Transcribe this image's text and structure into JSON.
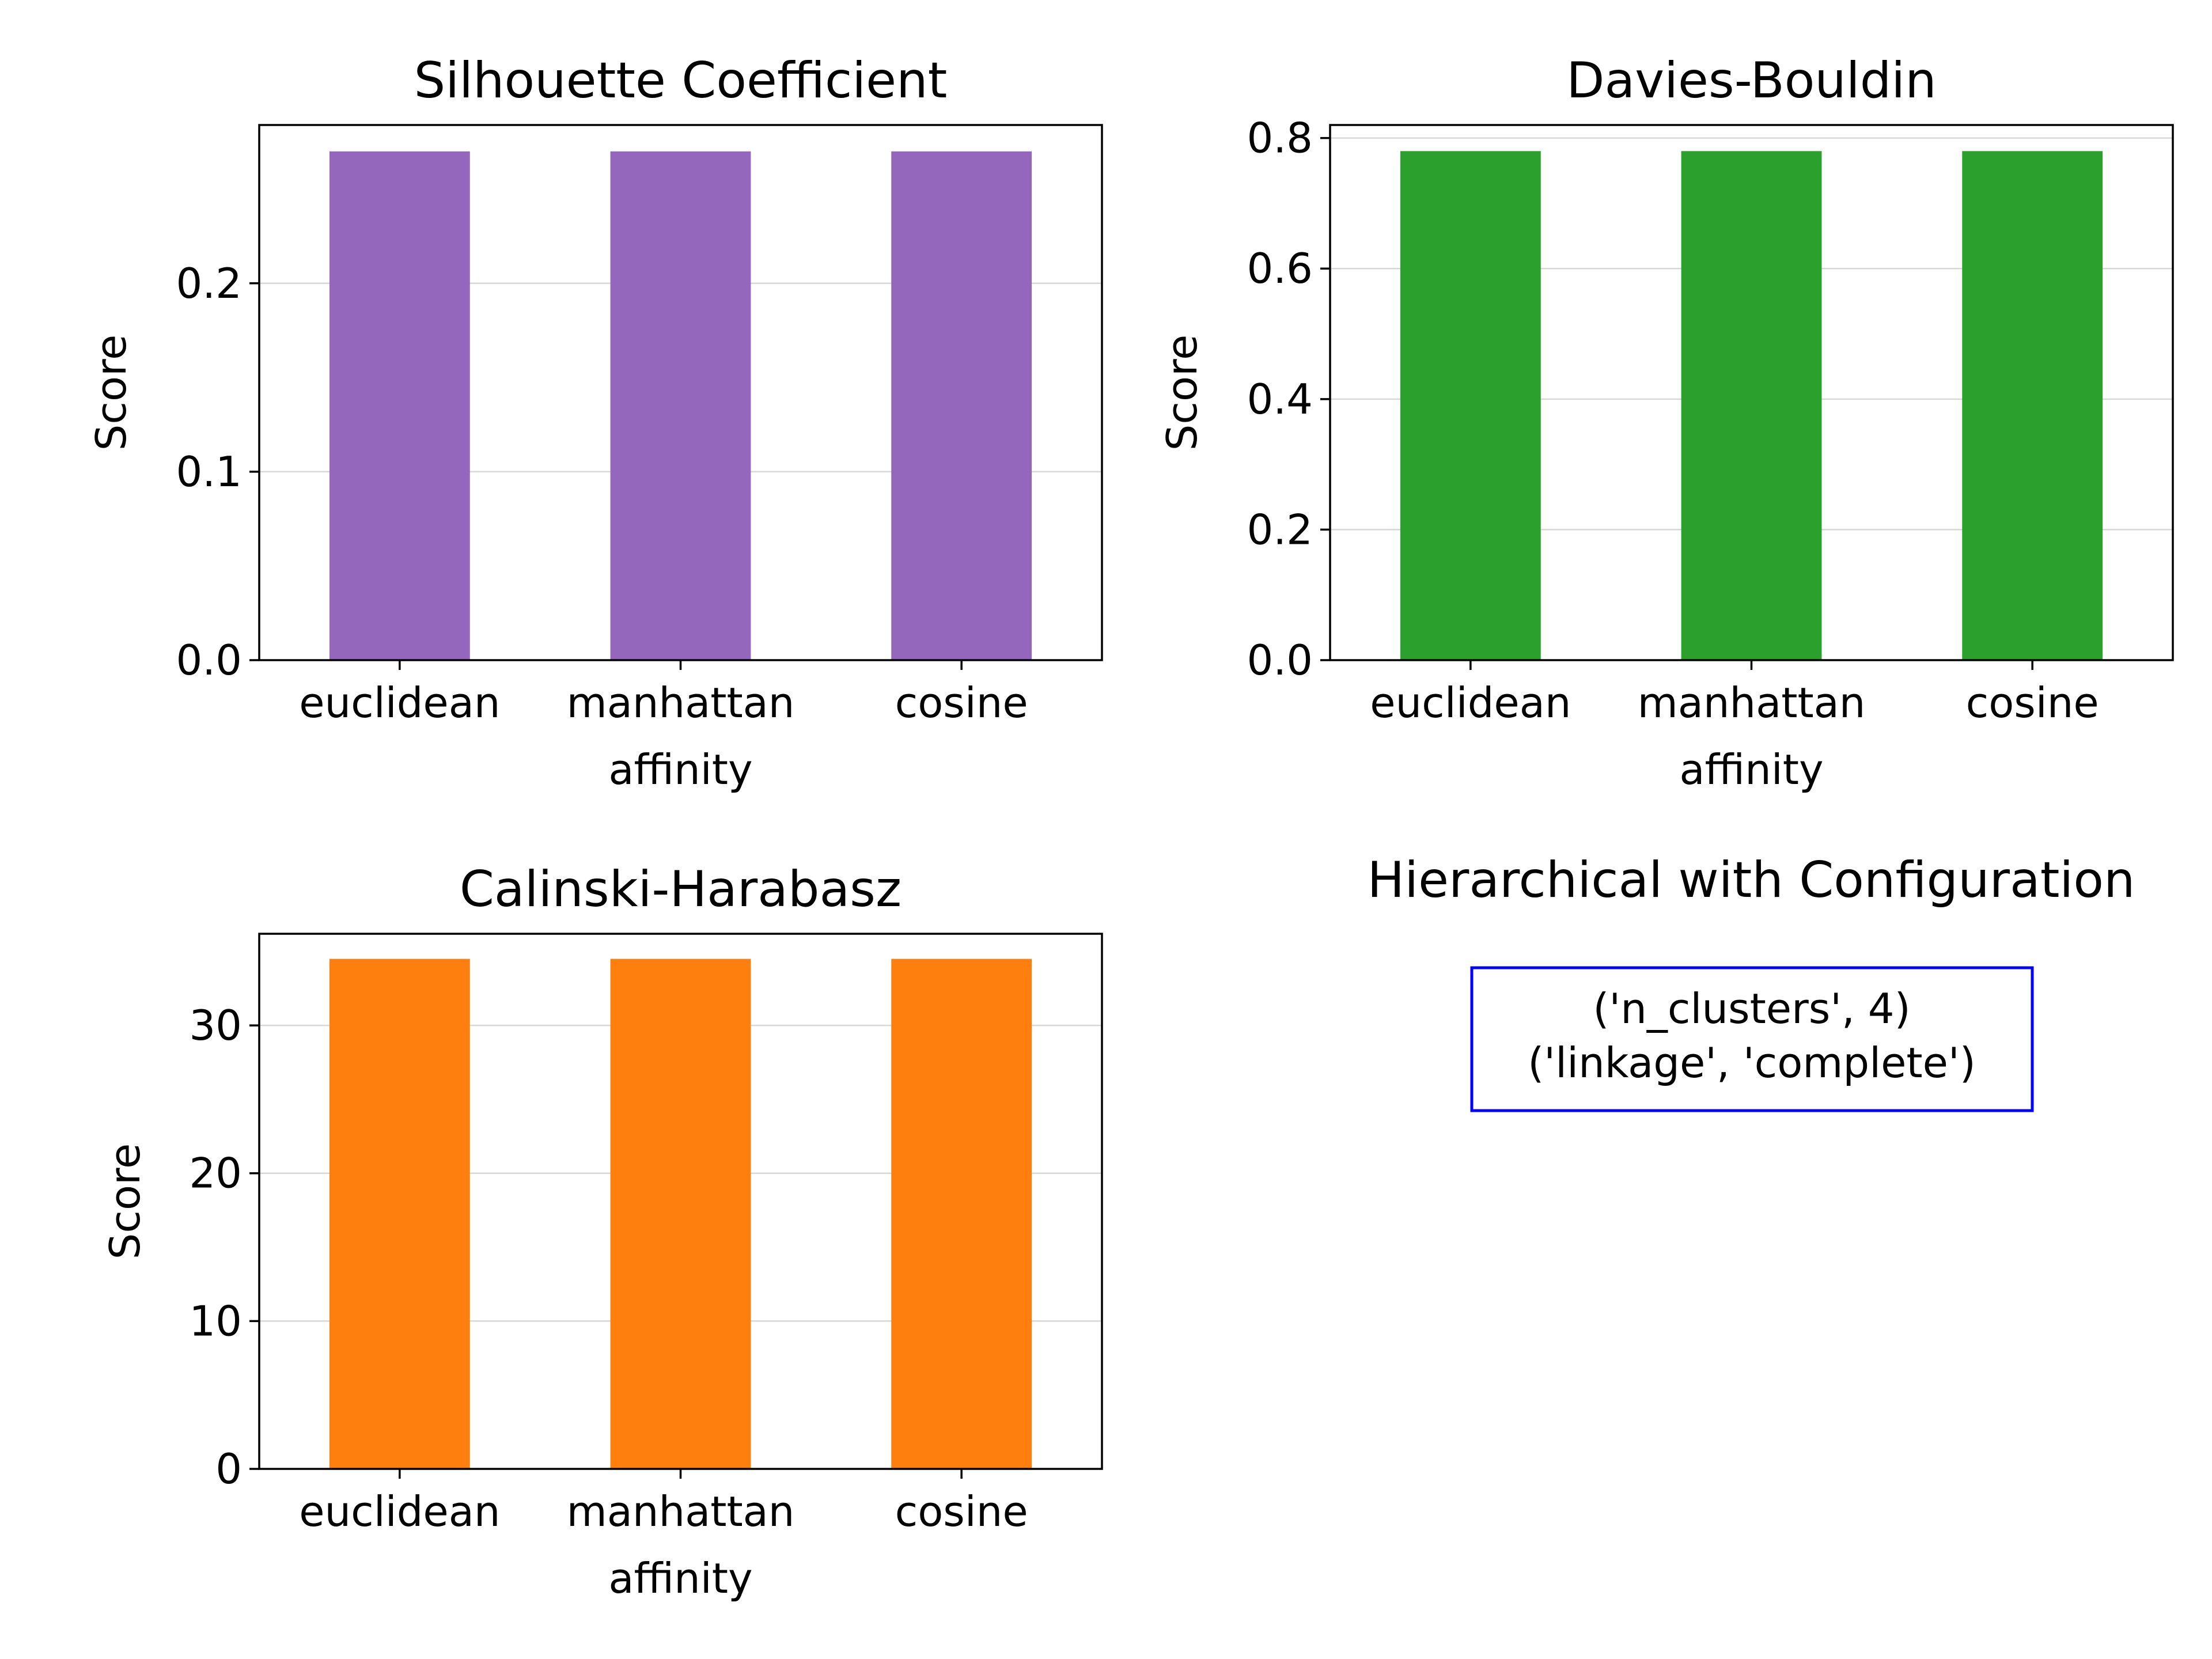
{
  "figure": {
    "config_title": "Hierarchical with Configuration",
    "config_lines": [
      "('n_clusters', 4)",
      "('linkage', 'complete')"
    ],
    "config_border_color": "#0000ff"
  },
  "chart_data": [
    {
      "type": "bar",
      "title": "Silhouette Coefficient",
      "xlabel": "affinity",
      "ylabel": "Score",
      "categories": [
        "euclidean",
        "manhattan",
        "cosine"
      ],
      "values": [
        0.27,
        0.27,
        0.27
      ],
      "ylim": [
        0,
        0.284
      ],
      "yticks": [
        0.0,
        0.1,
        0.2
      ],
      "ytick_labels": [
        "0.0",
        "0.1",
        "0.2"
      ],
      "grid": "y",
      "color": "#9467bd"
    },
    {
      "type": "bar",
      "title": "Davies-Bouldin",
      "xlabel": "affinity",
      "ylabel": "Score",
      "categories": [
        "euclidean",
        "manhattan",
        "cosine"
      ],
      "values": [
        0.78,
        0.78,
        0.78
      ],
      "ylim": [
        0,
        0.82
      ],
      "yticks": [
        0.0,
        0.2,
        0.4,
        0.6,
        0.8
      ],
      "ytick_labels": [
        "0.0",
        "0.2",
        "0.4",
        "0.6",
        "0.8"
      ],
      "grid": "y",
      "color": "#2ca02c"
    },
    {
      "type": "bar",
      "title": "Calinski-Harabasz",
      "xlabel": "affinity",
      "ylabel": "Score",
      "categories": [
        "euclidean",
        "manhattan",
        "cosine"
      ],
      "values": [
        34.5,
        34.5,
        34.5
      ],
      "ylim": [
        0,
        36.2
      ],
      "yticks": [
        0,
        10,
        20,
        30
      ],
      "ytick_labels": [
        "0",
        "10",
        "20",
        "30"
      ],
      "grid": "y",
      "color": "#ff7f0e"
    }
  ]
}
